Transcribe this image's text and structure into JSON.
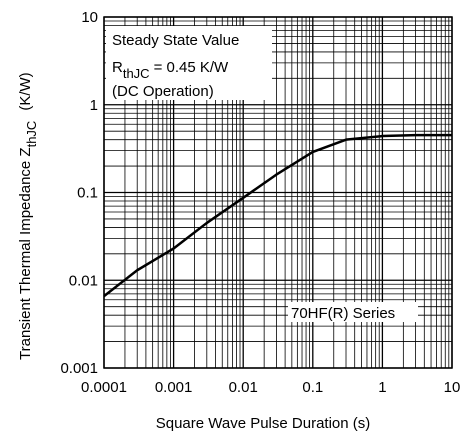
{
  "chart_data": {
    "type": "line",
    "x_label": "Square Wave Pulse Duration (s)",
    "y_label": "Transient Thermal Impedance Z",
    "y_label_subscript": "thJC",
    "y_label_unit": "(K/W)",
    "annotations": {
      "steady_state": "Steady State Value",
      "rth_symbol": "R",
      "rth_subscript": "thJC",
      "rth_value": "= 0.45 K/W",
      "dc": "(DC Operation)",
      "series_label": "70HF(R) Series"
    },
    "x": [
      0.0001,
      0.0003,
      0.001,
      0.003,
      0.01,
      0.03,
      0.1,
      0.3,
      1,
      3,
      10
    ],
    "series": [
      {
        "color": "#000000",
        "values": [
          0.0066,
          0.013,
          0.023,
          0.045,
          0.087,
          0.16,
          0.29,
          0.4,
          0.44,
          0.45,
          0.45
        ]
      }
    ],
    "xlim": [
      0.0001,
      10
    ],
    "ylim": [
      0.001,
      10
    ],
    "xticks": [
      0.0001,
      0.001,
      0.01,
      0.1,
      1,
      10
    ],
    "yticks": [
      0.001,
      0.01,
      0.1,
      1,
      10
    ],
    "xscale": "log",
    "yscale": "log",
    "grid": true
  }
}
